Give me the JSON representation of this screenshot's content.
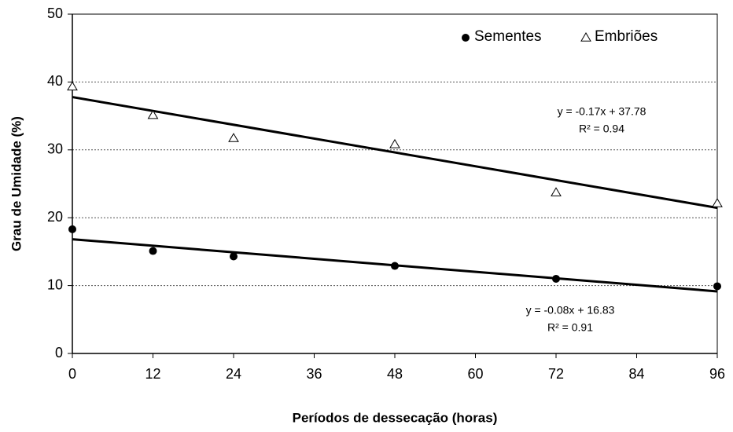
{
  "chart_data": {
    "type": "scatter",
    "x_label": "Períodos de dessecação (horas)",
    "y_label": "Grau de Umidade (%)",
    "x": [
      0,
      12,
      24,
      48,
      72,
      96
    ],
    "series": [
      {
        "name": "Sementes",
        "marker": "circle",
        "color": "#000000",
        "values": [
          18.3,
          15.1,
          14.3,
          12.9,
          11.0,
          9.9
        ],
        "trendline": {
          "slope": -0.08,
          "intercept": 16.83,
          "equation": "y = -0.08x + 16.83",
          "r2": "R² = 0.91"
        }
      },
      {
        "name": "Embriões",
        "marker": "triangle",
        "color": "#000000",
        "values": [
          39.3,
          35.1,
          31.7,
          30.8,
          23.7,
          22.1
        ],
        "trendline": {
          "slope": -0.17,
          "intercept": 37.78,
          "equation": "y = -0.17x + 37.78",
          "r2": "R² = 0.94"
        }
      }
    ],
    "xlim": [
      0,
      96
    ],
    "xticks": [
      0,
      12,
      24,
      36,
      48,
      60,
      72,
      84,
      96
    ],
    "ylim": [
      0,
      50
    ],
    "yticks": [
      0,
      10,
      20,
      30,
      40,
      50
    ],
    "grid": true,
    "legend": "top-right"
  }
}
